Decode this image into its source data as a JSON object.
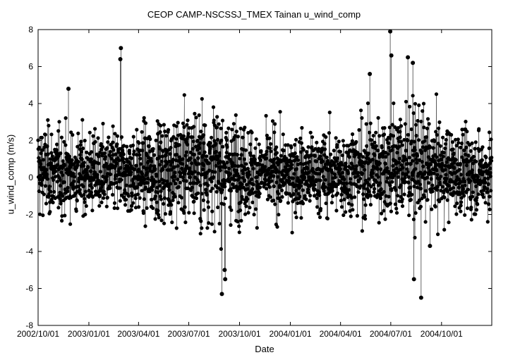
{
  "chart_data": {
    "type": "scatter",
    "title": "CEOP CAMP-NSCSSJ_TMEX Tainan  u_wind_comp",
    "xlabel": "Date",
    "ylabel": "u_wind_comp (m/s)",
    "xlim": [
      "2002-10-01",
      "2004-12-31"
    ],
    "ylim": [
      -8,
      8
    ],
    "x_ticks": [
      "2002/10/01",
      "2003/01/01",
      "2003/04/01",
      "2003/07/01",
      "2003/10/01",
      "2004/01/01",
      "2004/04/01",
      "2004/07/01",
      "2004/10/01"
    ],
    "y_ticks": [
      -8,
      -6,
      -4,
      -2,
      0,
      2,
      4,
      6,
      8
    ],
    "grid": false,
    "style": "black points joined by thin lines, dense hourly series",
    "outliers": [
      {
        "x": "2002-11-25",
        "y": 4.8
      },
      {
        "x": "2003-02-28",
        "y": 7.0
      },
      {
        "x": "2003-02-27",
        "y": 6.4
      },
      {
        "x": "2003-08-30",
        "y": -6.3
      },
      {
        "x": "2003-09-05",
        "y": -5.5
      },
      {
        "x": "2003-09-04",
        "y": -5.0
      },
      {
        "x": "2004-06-30",
        "y": 7.9
      },
      {
        "x": "2004-07-02",
        "y": 6.6
      },
      {
        "x": "2004-08-01",
        "y": 6.5
      },
      {
        "x": "2004-08-10",
        "y": 6.2
      },
      {
        "x": "2004-08-12",
        "y": -5.5
      },
      {
        "x": "2004-08-25",
        "y": -6.5
      },
      {
        "x": "2004-09-10",
        "y": -3.7
      },
      {
        "x": "2004-05-24",
        "y": 5.6
      }
    ]
  }
}
